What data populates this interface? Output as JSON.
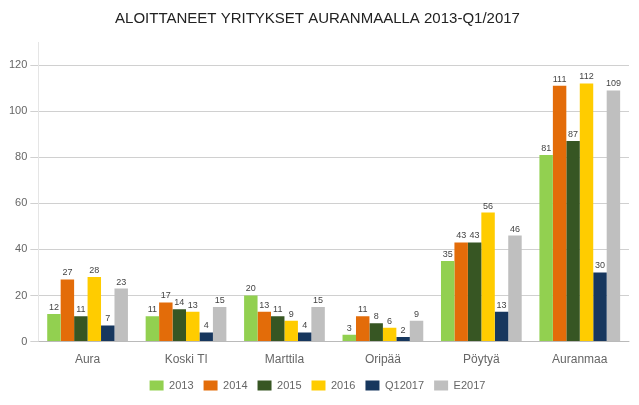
{
  "chart_data": {
    "type": "bar",
    "title": "ALOITTANEET YRITYKSET AURANMAALLA 2013-Q1/2017",
    "categories": [
      "Aura",
      "Koski Tl",
      "Marttila",
      "Oripää",
      "Pöytyä",
      "Auranmaa"
    ],
    "series": [
      {
        "name": "2013",
        "color": "#92d050",
        "values": [
          12,
          11,
          20,
          3,
          35,
          81
        ]
      },
      {
        "name": "2014",
        "color": "#e36c09",
        "values": [
          27,
          17,
          13,
          11,
          43,
          111
        ]
      },
      {
        "name": "2015",
        "color": "#375623",
        "values": [
          11,
          14,
          11,
          8,
          43,
          87
        ]
      },
      {
        "name": "2016",
        "color": "#ffcc00",
        "values": [
          28,
          13,
          9,
          6,
          56,
          112
        ]
      },
      {
        "name": "Q12017",
        "color": "#17375e",
        "values": [
          7,
          4,
          4,
          2,
          13,
          30
        ]
      },
      {
        "name": "E2017",
        "color": "#bfbfbf",
        "values": [
          23,
          15,
          15,
          9,
          46,
          109
        ]
      }
    ],
    "ylim": [
      0,
      130
    ],
    "yticks": [
      0,
      20,
      40,
      60,
      80,
      100,
      120
    ],
    "grid": true,
    "legend": "bottom",
    "data_labels": true
  }
}
